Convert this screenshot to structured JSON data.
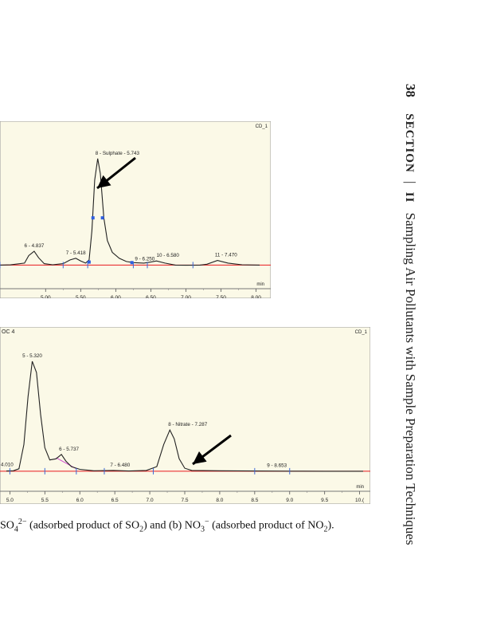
{
  "running_head": {
    "page_number": "38",
    "section_label": "SECTION",
    "section_number": "II",
    "title": "Sampling Air Pollutants with Sample Preparation Techniques"
  },
  "caption": {
    "part1": "SO",
    "sub1": "4",
    "sup1": "2−",
    "part2": " (adsorbed product of SO",
    "sub2": "2",
    "part3": ") and (b) NO",
    "sub3": "3",
    "sup3": "−",
    "part4": " (adsorbed product of NO",
    "sub4": "2",
    "part5": ")."
  },
  "chart_data": [
    {
      "type": "line",
      "corner_label": "CD_1",
      "xlabel": "min",
      "xlim": [
        4.35,
        8.05
      ],
      "xticks": [
        5.0,
        5.5,
        6.0,
        6.5,
        7.0,
        7.5,
        8.0
      ],
      "xtick_labels": [
        "5.00",
        "5.50",
        "6.00",
        "6.50",
        "7.00",
        "7.50",
        "8.00"
      ],
      "trace": [
        [
          4.35,
          0.012
        ],
        [
          4.5,
          0.014
        ],
        [
          4.7,
          0.03
        ],
        [
          4.76,
          0.1
        ],
        [
          4.837,
          0.14
        ],
        [
          4.9,
          0.08
        ],
        [
          4.98,
          0.025
        ],
        [
          5.1,
          0.015
        ],
        [
          5.25,
          0.025
        ],
        [
          5.35,
          0.06
        ],
        [
          5.43,
          0.075
        ],
        [
          5.5,
          0.05
        ],
        [
          5.57,
          0.03
        ],
        [
          5.62,
          0.06
        ],
        [
          5.66,
          0.33
        ],
        [
          5.7,
          0.8
        ],
        [
          5.743,
          1.0
        ],
        [
          5.78,
          0.86
        ],
        [
          5.83,
          0.45
        ],
        [
          5.88,
          0.24
        ],
        [
          5.95,
          0.13
        ],
        [
          6.05,
          0.075
        ],
        [
          6.15,
          0.045
        ],
        [
          6.25,
          0.035
        ],
        [
          6.4,
          0.03
        ],
        [
          6.5,
          0.04
        ],
        [
          6.58,
          0.05
        ],
        [
          6.7,
          0.03
        ],
        [
          6.85,
          0.012
        ],
        [
          7.0,
          0.01
        ],
        [
          7.2,
          0.012
        ],
        [
          7.3,
          0.02
        ],
        [
          7.45,
          0.055
        ],
        [
          7.6,
          0.03
        ],
        [
          7.8,
          0.015
        ],
        [
          8.05,
          0.012
        ]
      ],
      "ylim": [
        0,
        1.08
      ],
      "baseline_y": 0.012,
      "peaks": [
        {
          "label": "6 - 4.837",
          "x": 4.837,
          "y": 0.14
        },
        {
          "label": "7 - 5.418",
          "x": 5.43,
          "y": 0.075
        },
        {
          "label": "8 - Sulphate - 5.743",
          "x": 5.743,
          "y": 1.0
        },
        {
          "label": "9 - 6.250",
          "x": 6.25,
          "y": 0.035
        },
        {
          "label": "10 - 6.580",
          "x": 6.58,
          "y": 0.05
        },
        {
          "label": "11 - 7.470",
          "x": 7.47,
          "y": 0.055
        }
      ],
      "integration_markers": [
        4.35,
        5.25,
        5.6,
        6.25,
        6.45,
        7.1
      ],
      "integration_points": [
        [
          5.62,
          0.04
        ],
        [
          5.675,
          0.45
        ],
        [
          5.81,
          0.45
        ],
        [
          6.23,
          0.035
        ]
      ],
      "colors": {
        "background": "#fbf9e7",
        "trace": "#222222",
        "baseline": "#e8191c",
        "markers": "#3c68d6",
        "points": "#2f5fe0"
      }
    },
    {
      "type": "line",
      "header_label": "OC 4",
      "corner_label": "CD_1",
      "xlabel": "min",
      "xlim": [
        4.95,
        10.05
      ],
      "xticks": [
        5.0,
        5.5,
        6.0,
        6.5,
        7.0,
        7.5,
        8.0,
        8.5,
        9.0,
        9.5,
        10.0
      ],
      "xtick_labels": [
        "5.0",
        "5.5",
        "6.0",
        "6.5",
        "7.0",
        "7.5",
        "8.0",
        "8.5",
        "9.0",
        "9.5",
        "10.("
      ],
      "trace": [
        [
          4.95,
          0.01
        ],
        [
          5.05,
          0.012
        ],
        [
          5.13,
          0.03
        ],
        [
          5.2,
          0.25
        ],
        [
          5.26,
          0.68
        ],
        [
          5.32,
          1.0
        ],
        [
          5.38,
          0.9
        ],
        [
          5.44,
          0.52
        ],
        [
          5.5,
          0.22
        ],
        [
          5.57,
          0.11
        ],
        [
          5.66,
          0.12
        ],
        [
          5.737,
          0.16
        ],
        [
          5.8,
          0.1
        ],
        [
          5.88,
          0.05
        ],
        [
          6.0,
          0.025
        ],
        [
          6.2,
          0.012
        ],
        [
          6.48,
          0.015
        ],
        [
          6.7,
          0.01
        ],
        [
          6.95,
          0.015
        ],
        [
          7.1,
          0.05
        ],
        [
          7.2,
          0.25
        ],
        [
          7.287,
          0.38
        ],
        [
          7.35,
          0.3
        ],
        [
          7.42,
          0.12
        ],
        [
          7.5,
          0.035
        ],
        [
          7.6,
          0.015
        ],
        [
          8.0,
          0.012
        ],
        [
          8.5,
          0.01
        ],
        [
          9.0,
          0.009
        ],
        [
          9.5,
          0.008
        ],
        [
          10.05,
          0.008
        ]
      ],
      "ylim": [
        0,
        1.08
      ],
      "baseline_y": 0.008,
      "peaks": [
        {
          "label": "4.010",
          "x": 4.98,
          "y": 0.12
        },
        {
          "label": "5 - 5.320",
          "x": 5.32,
          "y": 1.0
        },
        {
          "label": "6 - 5.737",
          "x": 5.737,
          "y": 0.16
        },
        {
          "label": "7 - 6.480",
          "x": 6.48,
          "y": 0.015
        },
        {
          "label": "8 - Nitrate - 7.287",
          "x": 7.287,
          "y": 0.38
        },
        {
          "label": "9 - 8.653",
          "x": 8.653,
          "y": 0.01
        }
      ],
      "integration_markers": [
        5.0,
        5.5,
        5.95,
        6.35,
        7.05,
        8.5,
        9.0
      ],
      "colors": {
        "background": "#fbf9e7",
        "trace": "#222222",
        "baseline": "#e8191c",
        "markers": "#3c68d6",
        "secondary_baseline": "#d24fcf"
      }
    }
  ]
}
